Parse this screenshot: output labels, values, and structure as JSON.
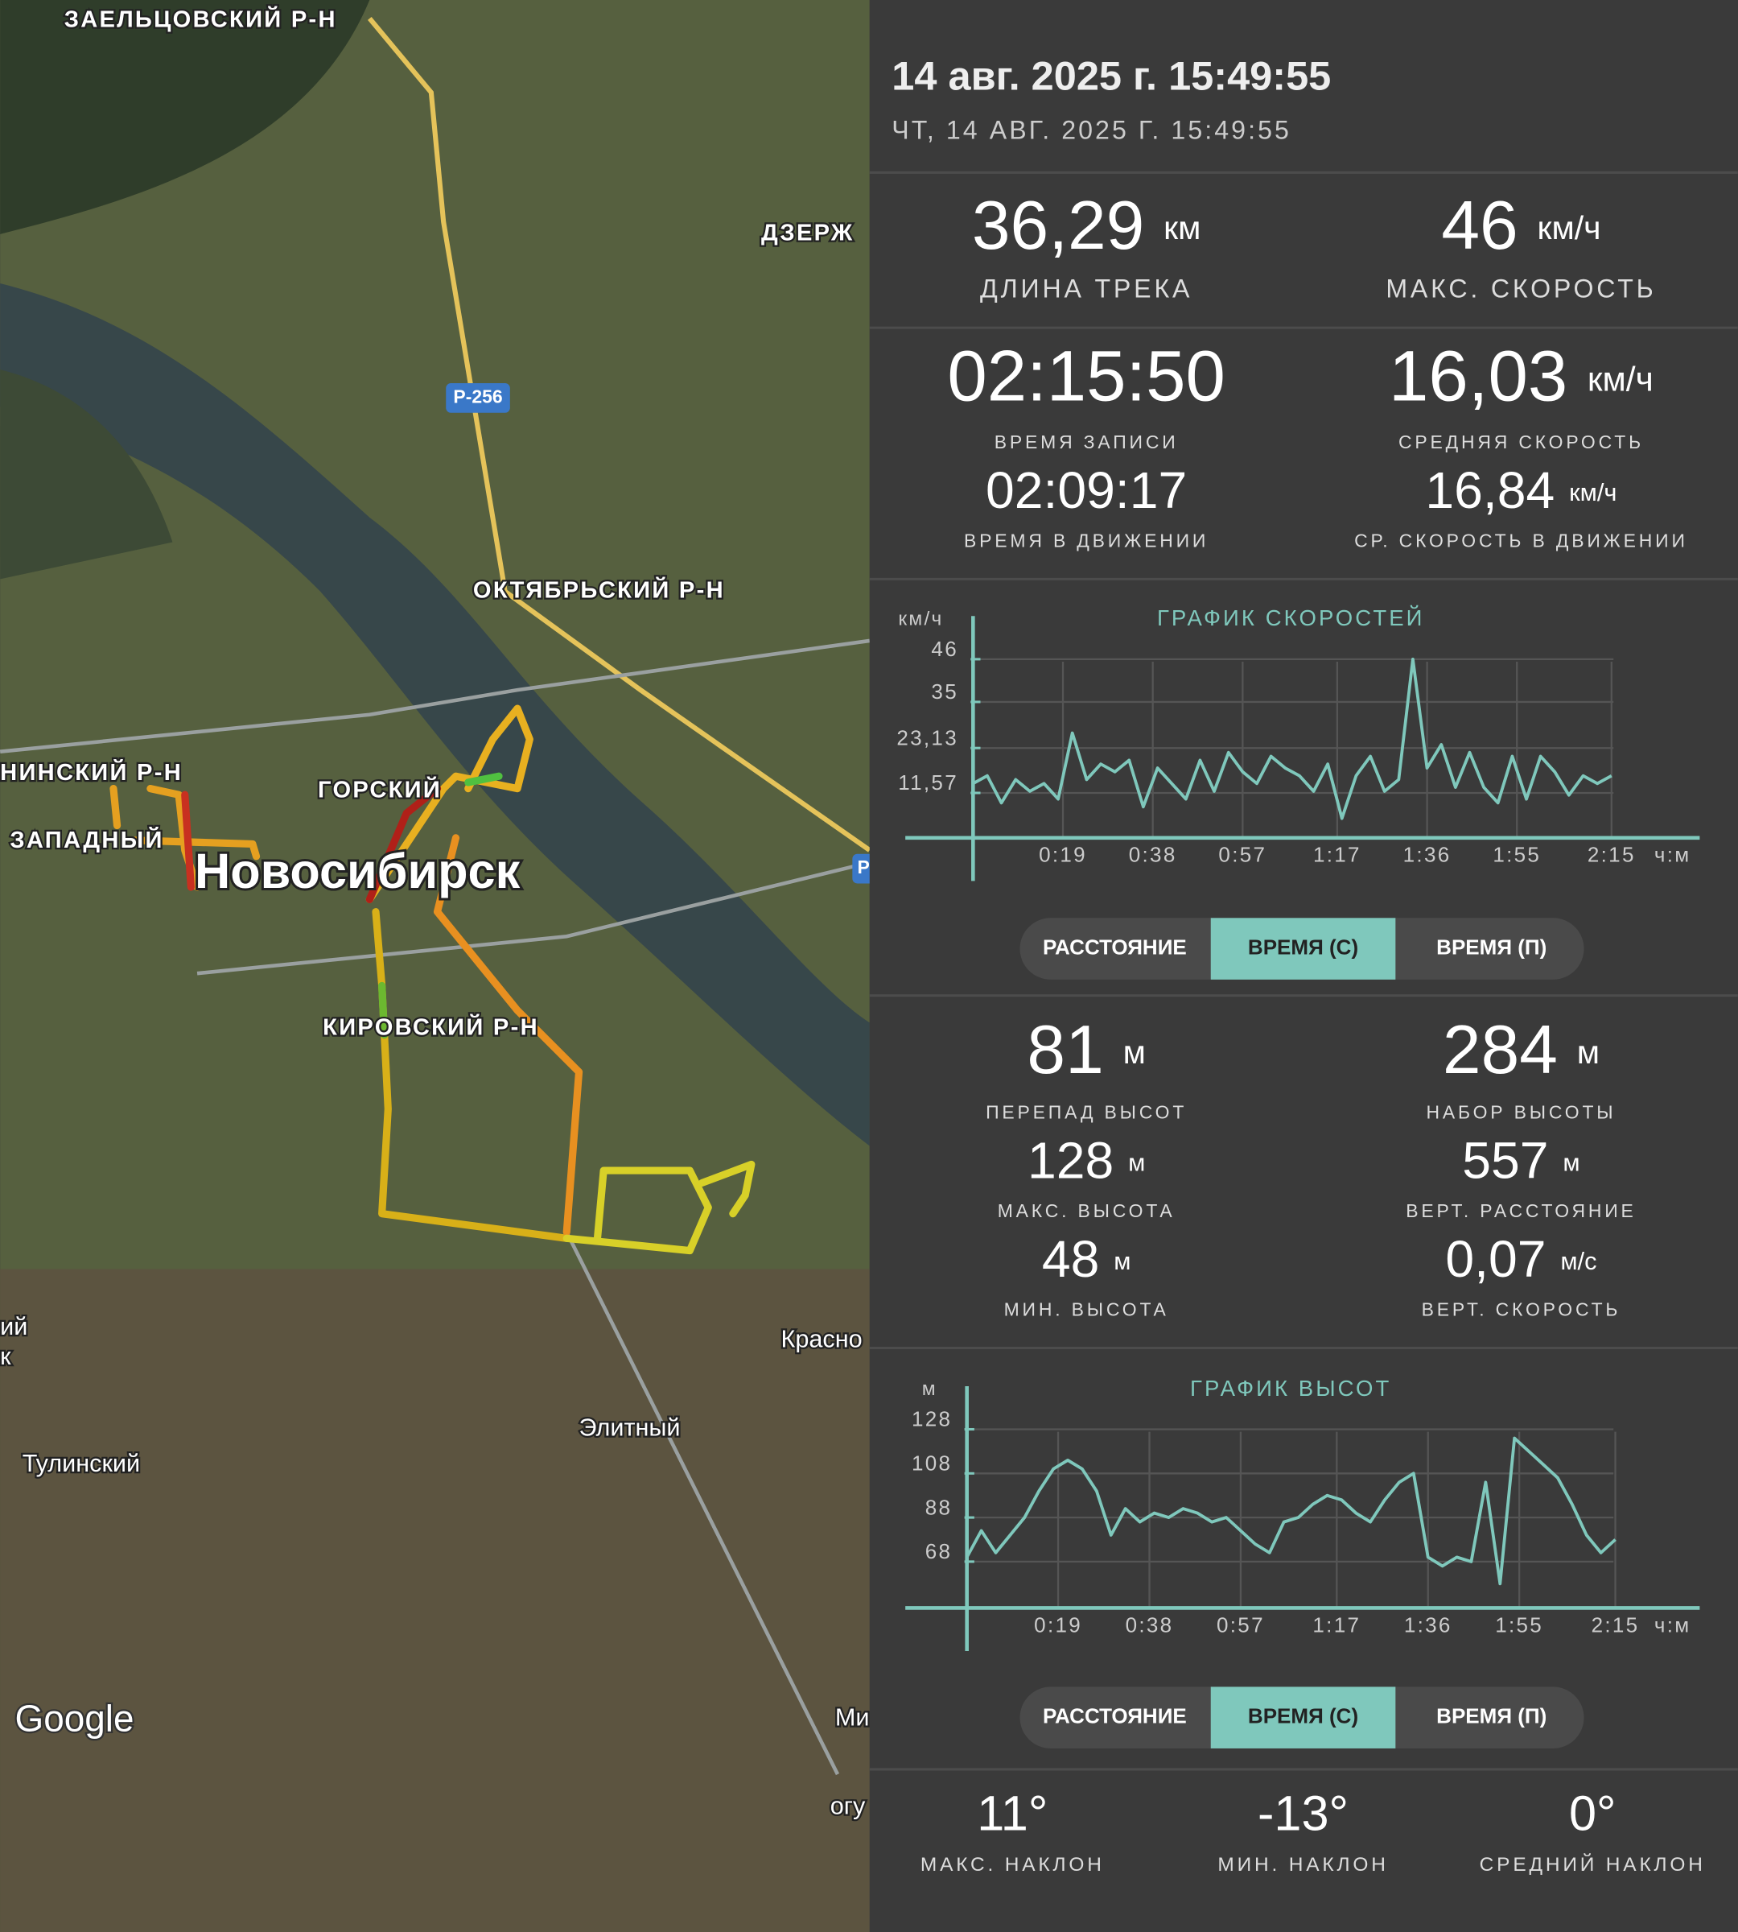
{
  "map": {
    "labels": [
      "ЗАЕЛЬЦОВСКИЙ Р-Н",
      "ДЗЕРЖ",
      "Р-256",
      "ОКТЯБРЬСКИЙ Р-Н",
      "НИНСКИЙ Р-Н",
      "ГОРСКИЙ",
      "ЗАПАДНЫЙ",
      "Новосибирск",
      "КИРОВСКИЙ Р-Н",
      "Красно",
      "Элитный",
      "Тулинский",
      "Google",
      "Ми",
      "огу",
      "ий",
      "к",
      "Р"
    ]
  },
  "header": {
    "title": "14 авг. 2025 г. 15:49:55",
    "subtitle": "ЧТ, 14 АВГ. 2025 Г. 15:49:55"
  },
  "track_stats": [
    {
      "value": "36,29",
      "unit": "км",
      "label": "ДЛИНА ТРЕКА"
    },
    {
      "value": "46",
      "unit": "км/ч",
      "label": "МАКС. СКОРОСТЬ"
    },
    {
      "value": "02:15:50",
      "label": "ВРЕМЯ ЗАПИСИ"
    },
    {
      "value": "16,03",
      "unit": "км/ч",
      "label": "СРЕДНЯЯ СКОРОСТЬ"
    },
    {
      "value": "02:09:17",
      "label": "ВРЕМЯ В ДВИЖЕНИИ"
    },
    {
      "value": "16,84",
      "unit": "км/ч",
      "label": "СР. СКОРОСТЬ В ДВИЖЕНИИ"
    }
  ],
  "speed_chart": {
    "type": "line",
    "title": "ГРАФИК СКОРОСТЕЙ",
    "y_label": "км/ч",
    "x_label": "ч:м",
    "color": "#7fc8bc",
    "xlim": [
      0,
      150
    ],
    "ylim": [
      0,
      46
    ],
    "xticks": [
      {
        "value": 19,
        "label": "0:19"
      },
      {
        "value": 38,
        "label": "0:38"
      },
      {
        "value": 57,
        "label": "0:57"
      },
      {
        "value": 77,
        "label": "1:17"
      },
      {
        "value": 96,
        "label": "1:36"
      },
      {
        "value": 115,
        "label": "1:55"
      },
      {
        "value": 135,
        "label": "2:15"
      }
    ],
    "yticks": [
      {
        "value": 11.57,
        "label": "11,57"
      },
      {
        "value": 23.13,
        "label": "23,13"
      },
      35,
      46
    ],
    "x": [
      0,
      3,
      6,
      9,
      12,
      15,
      18,
      21,
      24,
      27,
      30,
      33,
      36,
      39,
      42,
      45,
      48,
      51,
      54,
      57,
      60,
      63,
      66,
      69,
      72,
      75,
      78,
      81,
      84,
      87,
      90,
      93,
      96,
      99,
      102,
      105,
      108,
      111,
      114,
      117,
      120,
      123,
      126,
      129,
      132,
      135
    ],
    "values": [
      14,
      16,
      9,
      15,
      12,
      14,
      10,
      27,
      15,
      19,
      17,
      20,
      8,
      18,
      14,
      10,
      20,
      12,
      22,
      17,
      14,
      21,
      18,
      16,
      12,
      19,
      5,
      16,
      21,
      12,
      15,
      46,
      18,
      24,
      13,
      22,
      13,
      9,
      21,
      10,
      21,
      17,
      11,
      16,
      14,
      16
    ]
  },
  "toggle": [
    "РАССТОЯНИЕ",
    "ВРЕМЯ (С)",
    "ВРЕМЯ (П)"
  ],
  "elevation_stats": [
    {
      "value": "81",
      "unit": "м",
      "label": "ПЕРЕПАД ВЫСОТ"
    },
    {
      "value": "284",
      "unit": "м",
      "label": "НАБОР ВЫСОТЫ"
    },
    {
      "value": "128",
      "unit": "м",
      "label": "МАКС. ВЫСОТА"
    },
    {
      "value": "557",
      "unit": "м",
      "label": "ВЕРТ. РАССТОЯНИЕ"
    },
    {
      "value": "48",
      "unit": "м",
      "label": "МИН. ВЫСОТА"
    },
    {
      "value": "0,07",
      "unit": "м/с",
      "label": "ВЕРТ. СКОРОСТЬ"
    }
  ],
  "elevation_chart": {
    "type": "line",
    "title": "ГРАФИК ВЫСОТ",
    "y_label": "м",
    "x_label": "ч:м",
    "color": "#7fc8bc",
    "xlim": [
      0,
      150
    ],
    "ylim": [
      47,
      128
    ],
    "xticks": [
      {
        "value": 19,
        "label": "0:19"
      },
      {
        "value": 38,
        "label": "0:38"
      },
      {
        "value": 57,
        "label": "0:57"
      },
      {
        "value": 77,
        "label": "1:17"
      },
      {
        "value": 96,
        "label": "1:36"
      },
      {
        "value": 115,
        "label": "1:55"
      },
      {
        "value": 135,
        "label": "2:15"
      }
    ],
    "yticks": [
      68,
      88,
      108,
      128
    ],
    "x": [
      0,
      3,
      6,
      9,
      12,
      15,
      18,
      21,
      24,
      27,
      30,
      33,
      36,
      39,
      42,
      45,
      48,
      51,
      54,
      57,
      60,
      63,
      66,
      69,
      72,
      75,
      78,
      81,
      84,
      87,
      90,
      93,
      96,
      99,
      102,
      105,
      108,
      111,
      114,
      117,
      120,
      123,
      126,
      129,
      132,
      135
    ],
    "values": [
      70,
      82,
      72,
      80,
      88,
      100,
      110,
      114,
      110,
      100,
      80,
      92,
      86,
      90,
      88,
      92,
      90,
      86,
      88,
      82,
      76,
      72,
      86,
      88,
      94,
      98,
      96,
      90,
      86,
      96,
      104,
      108,
      70,
      66,
      70,
      68,
      104,
      58,
      124,
      118,
      112,
      106,
      94,
      80,
      72,
      78
    ]
  },
  "slope_stats": [
    {
      "value": "11°",
      "label": "МАКС. НАКЛОН"
    },
    {
      "value": "-13°",
      "label": "МИН. НАКЛОН"
    },
    {
      "value": "0°",
      "label": "СРЕДНИЙ НАКЛОН"
    }
  ]
}
